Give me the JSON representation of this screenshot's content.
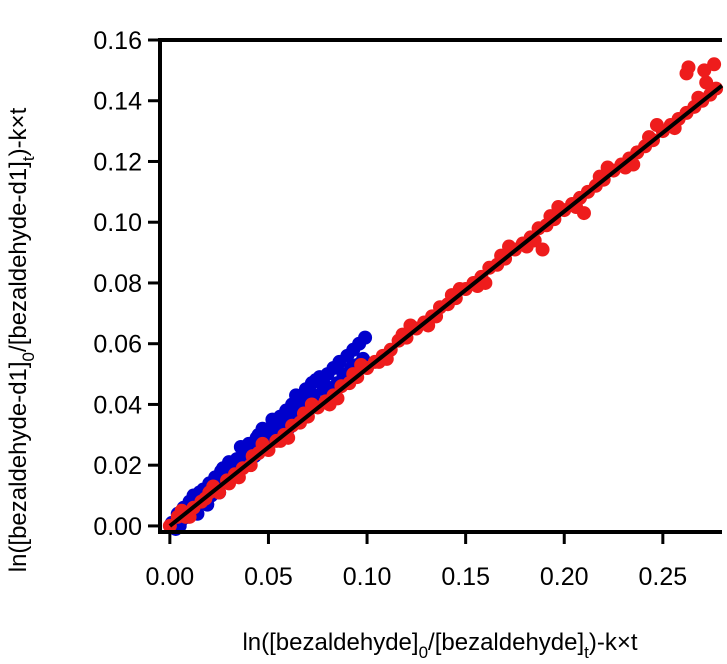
{
  "chart_data": {
    "type": "scatter",
    "title": "",
    "xlabel": {
      "main": "ln([bezaldehyde]",
      "sub1": "0",
      "mid": "/[bezaldehyde]",
      "sub2": "t",
      "tail": ")-k×t"
    },
    "ylabel": {
      "main": "ln([bezaldehyde-d1]",
      "sub1": "0",
      "mid": "/[bezaldehyde-d1]",
      "sub2": "t",
      "tail": ")-k×t"
    },
    "xlim": [
      -0.005,
      0.28
    ],
    "ylim": [
      -0.002,
      0.16
    ],
    "x_ticks": [
      "0.00",
      "0.05",
      "0.10",
      "0.15",
      "0.20",
      "0.25"
    ],
    "y_ticks": [
      "0.00",
      "0.02",
      "0.04",
      "0.06",
      "0.08",
      "0.10",
      "0.12",
      "0.14",
      "0.16"
    ],
    "grid": false,
    "legend": "none",
    "colors": {
      "series_a": "#0000cc",
      "series_b": "#ee1c1c",
      "fit_line": "#000000"
    },
    "fit_line": {
      "x": [
        0.0,
        0.28
      ],
      "y": [
        0.0,
        0.145
      ]
    },
    "series": [
      {
        "color": "#0000cc",
        "x": [
          0.001,
          0.003,
          0.004,
          0.006,
          0.007,
          0.009,
          0.01,
          0.011,
          0.012,
          0.013,
          0.014,
          0.016,
          0.017,
          0.019,
          0.02,
          0.021,
          0.023,
          0.024,
          0.025,
          0.027,
          0.028,
          0.03,
          0.031,
          0.033,
          0.034,
          0.035,
          0.037,
          0.038,
          0.04,
          0.041,
          0.043,
          0.044,
          0.046,
          0.047,
          0.049,
          0.05,
          0.052,
          0.053,
          0.055,
          0.056,
          0.058,
          0.059,
          0.06,
          0.062,
          0.063,
          0.065,
          0.066,
          0.068,
          0.069,
          0.07,
          0.072,
          0.073,
          0.075,
          0.076,
          0.078,
          0.079,
          0.08,
          0.082,
          0.083,
          0.085,
          0.086,
          0.088,
          0.089,
          0.09,
          0.092,
          0.093,
          0.095,
          0.096,
          0.098,
          0.099,
          0.005,
          0.015,
          0.026,
          0.036,
          0.045,
          0.055,
          0.064,
          0.074,
          0.084,
          0.094
        ],
        "y": [
          0.001,
          -0.001,
          0.004,
          0.002,
          0.006,
          0.003,
          0.008,
          0.005,
          0.01,
          0.007,
          0.004,
          0.009,
          0.012,
          0.007,
          0.014,
          0.01,
          0.016,
          0.012,
          0.011,
          0.019,
          0.015,
          0.021,
          0.017,
          0.018,
          0.022,
          0.02,
          0.025,
          0.021,
          0.027,
          0.024,
          0.023,
          0.029,
          0.026,
          0.032,
          0.028,
          0.031,
          0.035,
          0.03,
          0.029,
          0.036,
          0.034,
          0.038,
          0.032,
          0.04,
          0.036,
          0.042,
          0.038,
          0.037,
          0.045,
          0.041,
          0.047,
          0.043,
          0.04,
          0.049,
          0.045,
          0.046,
          0.05,
          0.044,
          0.052,
          0.047,
          0.054,
          0.05,
          0.049,
          0.056,
          0.052,
          0.058,
          0.053,
          0.06,
          0.055,
          0.062,
          0.0,
          0.011,
          0.018,
          0.026,
          0.03,
          0.033,
          0.043,
          0.048,
          0.046,
          0.051
        ]
      },
      {
        "color": "#ee1c1c",
        "x": [
          0.0,
          0.004,
          0.008,
          0.012,
          0.016,
          0.02,
          0.025,
          0.029,
          0.033,
          0.037,
          0.041,
          0.045,
          0.05,
          0.054,
          0.058,
          0.062,
          0.066,
          0.07,
          0.075,
          0.079,
          0.083,
          0.087,
          0.091,
          0.095,
          0.1,
          0.104,
          0.108,
          0.112,
          0.116,
          0.12,
          0.125,
          0.129,
          0.133,
          0.137,
          0.141,
          0.145,
          0.15,
          0.154,
          0.158,
          0.162,
          0.166,
          0.17,
          0.175,
          0.179,
          0.183,
          0.187,
          0.191,
          0.195,
          0.2,
          0.204,
          0.208,
          0.212,
          0.216,
          0.22,
          0.225,
          0.229,
          0.233,
          0.237,
          0.241,
          0.245,
          0.25,
          0.254,
          0.258,
          0.262,
          0.266,
          0.27,
          0.274,
          0.277,
          0.006,
          0.018,
          0.03,
          0.042,
          0.056,
          0.068,
          0.081,
          0.093,
          0.106,
          0.118,
          0.131,
          0.143,
          0.156,
          0.168,
          0.181,
          0.193,
          0.206,
          0.218,
          0.231,
          0.243,
          0.256,
          0.268,
          0.272,
          0.263,
          0.247,
          0.235,
          0.222,
          0.21,
          0.197,
          0.185,
          0.172,
          0.16,
          0.147,
          0.135,
          0.122,
          0.11,
          0.097,
          0.085,
          0.072,
          0.06,
          0.047,
          0.035,
          0.022,
          0.01,
          0.189,
          0.262,
          0.271,
          0.276
        ],
        "y": [
          0.0,
          0.003,
          0.003,
          0.006,
          0.008,
          0.011,
          0.011,
          0.015,
          0.017,
          0.019,
          0.02,
          0.024,
          0.025,
          0.028,
          0.03,
          0.033,
          0.034,
          0.036,
          0.039,
          0.041,
          0.043,
          0.046,
          0.047,
          0.049,
          0.052,
          0.054,
          0.056,
          0.058,
          0.061,
          0.062,
          0.065,
          0.067,
          0.069,
          0.072,
          0.073,
          0.075,
          0.078,
          0.08,
          0.082,
          0.085,
          0.086,
          0.088,
          0.091,
          0.093,
          0.095,
          0.098,
          0.099,
          0.101,
          0.104,
          0.106,
          0.108,
          0.11,
          0.112,
          0.114,
          0.117,
          0.119,
          0.121,
          0.123,
          0.125,
          0.127,
          0.13,
          0.132,
          0.134,
          0.136,
          0.138,
          0.14,
          0.142,
          0.144,
          0.005,
          0.009,
          0.014,
          0.023,
          0.028,
          0.037,
          0.04,
          0.05,
          0.054,
          0.063,
          0.066,
          0.076,
          0.079,
          0.089,
          0.092,
          0.102,
          0.105,
          0.115,
          0.118,
          0.128,
          0.131,
          0.141,
          0.146,
          0.151,
          0.132,
          0.119,
          0.118,
          0.103,
          0.105,
          0.094,
          0.092,
          0.08,
          0.078,
          0.069,
          0.066,
          0.055,
          0.053,
          0.042,
          0.04,
          0.029,
          0.027,
          0.016,
          0.013,
          0.003,
          0.091,
          0.149,
          0.15,
          0.152
        ]
      }
    ]
  }
}
